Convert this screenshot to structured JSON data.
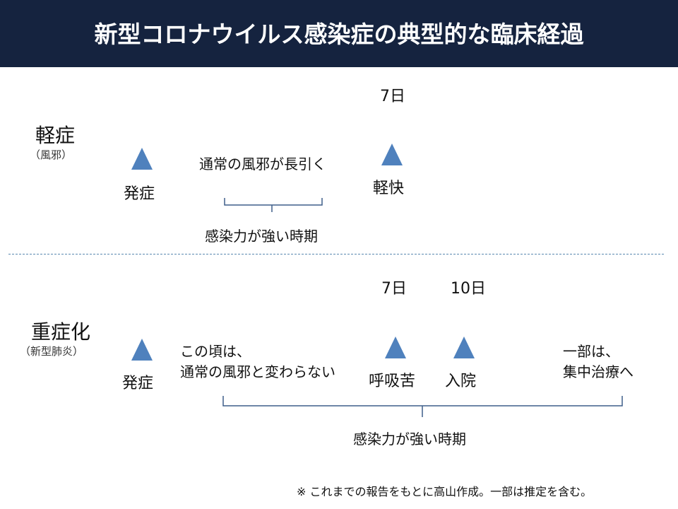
{
  "title": "新型コロナウイルス感染症の典型的な臨床経過",
  "mild": {
    "label": "軽症",
    "sublabel": "（風邪）",
    "day_label": "7日",
    "onset": "発症",
    "description": "通常の風邪が長引く",
    "recovery": "軽快",
    "infectious_period": "感染力が強い時期"
  },
  "severe": {
    "label": "重症化",
    "sublabel": "（新型肺炎）",
    "day7_label": "7日",
    "day10_label": "10日",
    "onset": "発症",
    "description_line1": "この頃は、",
    "description_line2": "通常の風邪と変わらない",
    "dyspnea": "呼吸苦",
    "hospitalization": "入院",
    "icu_line1": "一部は、",
    "icu_line2": "集中治療へ",
    "infectious_period": "感染力が強い時期"
  },
  "footnote": "※ これまでの報告をもとに高山作成。一部は推定を含む。",
  "colors": {
    "header": "#15233f",
    "orange": "#e36c0a",
    "red": "#c41e08",
    "marker": "#4f81bd"
  }
}
